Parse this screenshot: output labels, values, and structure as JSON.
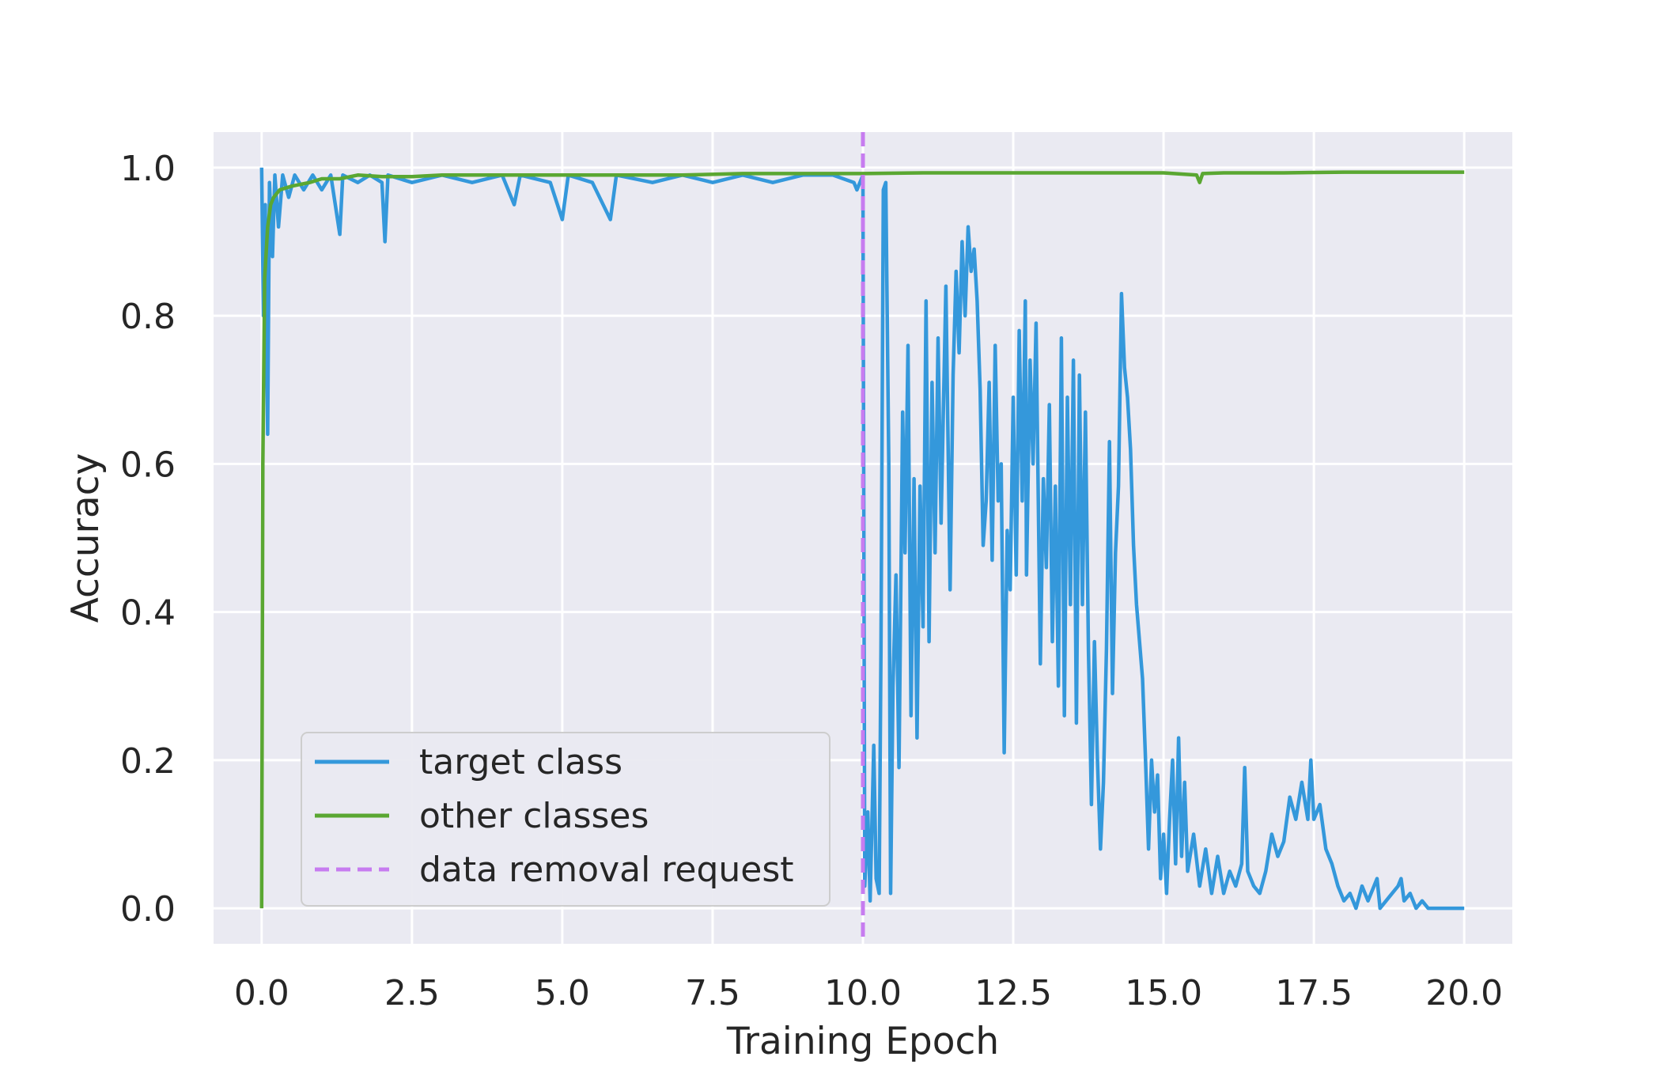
{
  "chart_data": {
    "type": "line",
    "xlabel": "Training Epoch",
    "ylabel": "Accuracy",
    "xlim": [
      -0.8,
      20.8
    ],
    "ylim": [
      -0.048,
      1.048
    ],
    "xticks": [
      0.0,
      2.5,
      5.0,
      7.5,
      10.0,
      12.5,
      15.0,
      17.5,
      20.0
    ],
    "xtick_labels": [
      "0.0",
      "2.5",
      "5.0",
      "7.5",
      "10.0",
      "12.5",
      "15.0",
      "17.5",
      "20.0"
    ],
    "yticks": [
      0.0,
      0.2,
      0.4,
      0.6,
      0.8,
      1.0
    ],
    "ytick_labels": [
      "0.0",
      "0.2",
      "0.4",
      "0.6",
      "0.8",
      "1.0"
    ],
    "grid": true,
    "legend_position": "lower-left",
    "background_color": "#eaeaf2",
    "series": [
      {
        "name": "target class",
        "color": "#3498db",
        "points": [
          [
            0.0,
            1.0
          ],
          [
            0.03,
            0.8
          ],
          [
            0.06,
            0.95
          ],
          [
            0.1,
            0.64
          ],
          [
            0.13,
            0.98
          ],
          [
            0.18,
            0.88
          ],
          [
            0.22,
            0.99
          ],
          [
            0.28,
            0.92
          ],
          [
            0.35,
            0.99
          ],
          [
            0.45,
            0.96
          ],
          [
            0.55,
            0.99
          ],
          [
            0.7,
            0.97
          ],
          [
            0.85,
            0.99
          ],
          [
            1.0,
            0.97
          ],
          [
            1.15,
            0.99
          ],
          [
            1.3,
            0.91
          ],
          [
            1.35,
            0.99
          ],
          [
            1.6,
            0.98
          ],
          [
            1.8,
            0.99
          ],
          [
            2.0,
            0.98
          ],
          [
            2.05,
            0.9
          ],
          [
            2.1,
            0.99
          ],
          [
            2.5,
            0.98
          ],
          [
            3.0,
            0.99
          ],
          [
            3.5,
            0.98
          ],
          [
            4.0,
            0.99
          ],
          [
            4.2,
            0.95
          ],
          [
            4.3,
            0.99
          ],
          [
            4.8,
            0.98
          ],
          [
            5.0,
            0.93
          ],
          [
            5.1,
            0.99
          ],
          [
            5.5,
            0.98
          ],
          [
            5.8,
            0.93
          ],
          [
            5.9,
            0.99
          ],
          [
            6.5,
            0.98
          ],
          [
            7.0,
            0.99
          ],
          [
            7.5,
            0.98
          ],
          [
            8.0,
            0.99
          ],
          [
            8.5,
            0.98
          ],
          [
            9.0,
            0.99
          ],
          [
            9.5,
            0.99
          ],
          [
            9.85,
            0.98
          ],
          [
            9.9,
            0.97
          ],
          [
            10.0,
            0.99
          ],
          [
            10.03,
            0.03
          ],
          [
            10.08,
            0.13
          ],
          [
            10.12,
            0.01
          ],
          [
            10.18,
            0.22
          ],
          [
            10.22,
            0.04
          ],
          [
            10.27,
            0.02
          ],
          [
            10.3,
            0.35
          ],
          [
            10.34,
            0.97
          ],
          [
            10.38,
            0.98
          ],
          [
            10.43,
            0.6
          ],
          [
            10.46,
            0.02
          ],
          [
            10.5,
            0.3
          ],
          [
            10.55,
            0.45
          ],
          [
            10.6,
            0.19
          ],
          [
            10.66,
            0.67
          ],
          [
            10.7,
            0.48
          ],
          [
            10.75,
            0.76
          ],
          [
            10.8,
            0.26
          ],
          [
            10.85,
            0.58
          ],
          [
            10.9,
            0.23
          ],
          [
            10.95,
            0.57
          ],
          [
            11.0,
            0.38
          ],
          [
            11.05,
            0.82
          ],
          [
            11.1,
            0.36
          ],
          [
            11.15,
            0.71
          ],
          [
            11.2,
            0.48
          ],
          [
            11.25,
            0.77
          ],
          [
            11.3,
            0.52
          ],
          [
            11.38,
            0.84
          ],
          [
            11.45,
            0.43
          ],
          [
            11.5,
            0.72
          ],
          [
            11.55,
            0.86
          ],
          [
            11.6,
            0.75
          ],
          [
            11.65,
            0.9
          ],
          [
            11.7,
            0.8
          ],
          [
            11.75,
            0.92
          ],
          [
            11.8,
            0.86
          ],
          [
            11.85,
            0.89
          ],
          [
            11.9,
            0.82
          ],
          [
            11.95,
            0.7
          ],
          [
            12.0,
            0.49
          ],
          [
            12.05,
            0.55
          ],
          [
            12.1,
            0.71
          ],
          [
            12.15,
            0.47
          ],
          [
            12.2,
            0.76
          ],
          [
            12.25,
            0.55
          ],
          [
            12.3,
            0.6
          ],
          [
            12.35,
            0.21
          ],
          [
            12.4,
            0.51
          ],
          [
            12.45,
            0.43
          ],
          [
            12.5,
            0.69
          ],
          [
            12.55,
            0.45
          ],
          [
            12.6,
            0.78
          ],
          [
            12.65,
            0.55
          ],
          [
            12.7,
            0.82
          ],
          [
            12.72,
            0.45
          ],
          [
            12.78,
            0.74
          ],
          [
            12.83,
            0.6
          ],
          [
            12.88,
            0.79
          ],
          [
            12.95,
            0.33
          ],
          [
            13.0,
            0.58
          ],
          [
            13.05,
            0.46
          ],
          [
            13.1,
            0.68
          ],
          [
            13.15,
            0.36
          ],
          [
            13.2,
            0.57
          ],
          [
            13.25,
            0.3
          ],
          [
            13.3,
            0.77
          ],
          [
            13.35,
            0.26
          ],
          [
            13.4,
            0.69
          ],
          [
            13.45,
            0.41
          ],
          [
            13.5,
            0.74
          ],
          [
            13.55,
            0.25
          ],
          [
            13.6,
            0.72
          ],
          [
            13.65,
            0.41
          ],
          [
            13.7,
            0.67
          ],
          [
            13.75,
            0.35
          ],
          [
            13.8,
            0.14
          ],
          [
            13.85,
            0.36
          ],
          [
            13.9,
            0.2
          ],
          [
            13.95,
            0.08
          ],
          [
            14.0,
            0.17
          ],
          [
            14.05,
            0.35
          ],
          [
            14.1,
            0.63
          ],
          [
            14.15,
            0.29
          ],
          [
            14.2,
            0.48
          ],
          [
            14.25,
            0.57
          ],
          [
            14.3,
            0.83
          ],
          [
            14.35,
            0.73
          ],
          [
            14.4,
            0.69
          ],
          [
            14.45,
            0.62
          ],
          [
            14.5,
            0.49
          ],
          [
            14.55,
            0.41
          ],
          [
            14.6,
            0.36
          ],
          [
            14.65,
            0.31
          ],
          [
            14.7,
            0.2
          ],
          [
            14.75,
            0.08
          ],
          [
            14.8,
            0.2
          ],
          [
            14.85,
            0.13
          ],
          [
            14.9,
            0.18
          ],
          [
            14.95,
            0.04
          ],
          [
            15.0,
            0.1
          ],
          [
            15.05,
            0.02
          ],
          [
            15.1,
            0.12
          ],
          [
            15.15,
            0.2
          ],
          [
            15.2,
            0.06
          ],
          [
            15.25,
            0.23
          ],
          [
            15.3,
            0.07
          ],
          [
            15.35,
            0.17
          ],
          [
            15.4,
            0.05
          ],
          [
            15.5,
            0.1
          ],
          [
            15.6,
            0.03
          ],
          [
            15.7,
            0.08
          ],
          [
            15.8,
            0.02
          ],
          [
            15.9,
            0.07
          ],
          [
            16.0,
            0.02
          ],
          [
            16.1,
            0.05
          ],
          [
            16.2,
            0.03
          ],
          [
            16.3,
            0.06
          ],
          [
            16.35,
            0.19
          ],
          [
            16.4,
            0.05
          ],
          [
            16.5,
            0.03
          ],
          [
            16.6,
            0.02
          ],
          [
            16.7,
            0.05
          ],
          [
            16.8,
            0.1
          ],
          [
            16.9,
            0.07
          ],
          [
            17.0,
            0.09
          ],
          [
            17.1,
            0.15
          ],
          [
            17.2,
            0.12
          ],
          [
            17.3,
            0.17
          ],
          [
            17.4,
            0.12
          ],
          [
            17.45,
            0.2
          ],
          [
            17.5,
            0.12
          ],
          [
            17.6,
            0.14
          ],
          [
            17.7,
            0.08
          ],
          [
            17.8,
            0.06
          ],
          [
            17.9,
            0.03
          ],
          [
            18.0,
            0.01
          ],
          [
            18.1,
            0.02
          ],
          [
            18.2,
            0.0
          ],
          [
            18.3,
            0.03
          ],
          [
            18.4,
            0.01
          ],
          [
            18.5,
            0.03
          ],
          [
            18.55,
            0.04
          ],
          [
            18.6,
            0.0
          ],
          [
            18.7,
            0.01
          ],
          [
            18.8,
            0.02
          ],
          [
            18.9,
            0.03
          ],
          [
            18.95,
            0.04
          ],
          [
            19.0,
            0.01
          ],
          [
            19.1,
            0.02
          ],
          [
            19.2,
            0.0
          ],
          [
            19.3,
            0.01
          ],
          [
            19.4,
            0.0
          ],
          [
            19.5,
            0.0
          ],
          [
            19.7,
            0.0
          ],
          [
            20.0,
            0.0
          ]
        ]
      },
      {
        "name": "other classes",
        "color": "#5aa732",
        "points": [
          [
            0.0,
            0.0
          ],
          [
            0.02,
            0.6
          ],
          [
            0.05,
            0.85
          ],
          [
            0.1,
            0.92
          ],
          [
            0.15,
            0.95
          ],
          [
            0.2,
            0.96
          ],
          [
            0.3,
            0.97
          ],
          [
            0.5,
            0.975
          ],
          [
            0.8,
            0.98
          ],
          [
            1.0,
            0.985
          ],
          [
            1.3,
            0.985
          ],
          [
            1.6,
            0.99
          ],
          [
            2.0,
            0.988
          ],
          [
            2.5,
            0.988
          ],
          [
            3.0,
            0.99
          ],
          [
            3.5,
            0.99
          ],
          [
            4.0,
            0.99
          ],
          [
            5.0,
            0.99
          ],
          [
            6.0,
            0.99
          ],
          [
            7.0,
            0.99
          ],
          [
            8.0,
            0.992
          ],
          [
            9.0,
            0.992
          ],
          [
            10.0,
            0.992
          ],
          [
            11.0,
            0.993
          ],
          [
            12.0,
            0.993
          ],
          [
            13.0,
            0.993
          ],
          [
            14.0,
            0.993
          ],
          [
            15.0,
            0.993
          ],
          [
            15.55,
            0.99
          ],
          [
            15.6,
            0.98
          ],
          [
            15.65,
            0.992
          ],
          [
            16.0,
            0.993
          ],
          [
            17.0,
            0.993
          ],
          [
            18.0,
            0.994
          ],
          [
            19.0,
            0.994
          ],
          [
            20.0,
            0.994
          ]
        ]
      }
    ],
    "vertical_line": {
      "name": "data removal request",
      "x": 10.0,
      "color": "#c77cf0",
      "style": "dashed"
    }
  }
}
